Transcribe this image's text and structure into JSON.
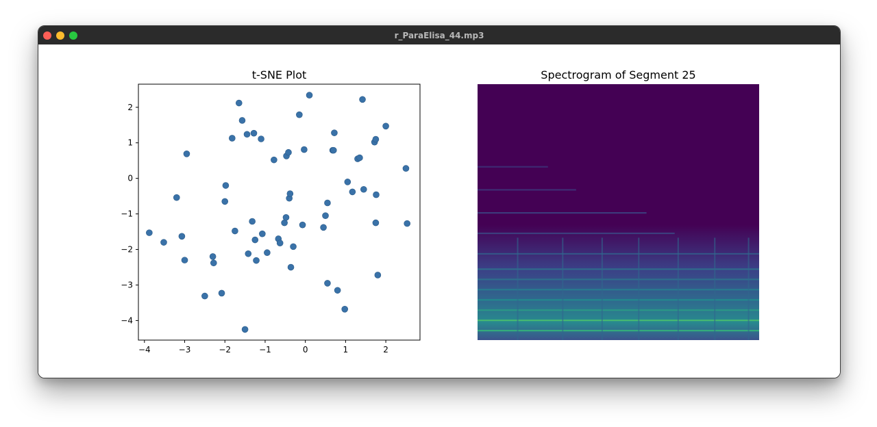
{
  "window": {
    "title": "r_ParaElisa_44.mp3"
  },
  "chart_data": [
    {
      "type": "scatter",
      "title": "t-SNE Plot",
      "xlabel": "",
      "ylabel": "",
      "xlim": [
        -4.15,
        2.85
      ],
      "ylim": [
        -4.55,
        2.65
      ],
      "xticks": [
        -4,
        -3,
        -2,
        -1,
        0,
        1,
        2
      ],
      "yticks": [
        -4,
        -3,
        -2,
        -1,
        0,
        1,
        2
      ],
      "xtick_labels": [
        "−4",
        "−3",
        "−2",
        "−1",
        "0",
        "1",
        "2"
      ],
      "ytick_labels": [
        "−4",
        "−3",
        "−2",
        "−1",
        "0",
        "1",
        "2"
      ],
      "grid": false,
      "color": "#3a72a8",
      "points": [
        [
          -3.88,
          -1.53
        ],
        [
          -3.52,
          -1.8
        ],
        [
          -3.2,
          -0.54
        ],
        [
          -3.07,
          -1.63
        ],
        [
          -3.0,
          -2.3
        ],
        [
          -2.95,
          0.69
        ],
        [
          -2.5,
          -3.31
        ],
        [
          -2.3,
          -2.2
        ],
        [
          -2.28,
          -2.38
        ],
        [
          -2.08,
          -3.23
        ],
        [
          -2.0,
          -0.65
        ],
        [
          -1.98,
          -0.2
        ],
        [
          -1.82,
          1.13
        ],
        [
          -1.75,
          -1.48
        ],
        [
          -1.65,
          2.12
        ],
        [
          -1.57,
          1.63
        ],
        [
          -1.5,
          -4.25
        ],
        [
          -1.45,
          1.24
        ],
        [
          -1.42,
          -2.12
        ],
        [
          -1.32,
          -1.21
        ],
        [
          -1.28,
          1.27
        ],
        [
          -1.25,
          -1.73
        ],
        [
          -1.22,
          -2.31
        ],
        [
          -1.1,
          1.11
        ],
        [
          -1.07,
          -1.56
        ],
        [
          -0.95,
          -2.09
        ],
        [
          -0.78,
          0.52
        ],
        [
          -0.67,
          -1.7
        ],
        [
          -0.63,
          -1.82
        ],
        [
          -0.52,
          -1.25
        ],
        [
          -0.48,
          -1.1
        ],
        [
          -0.47,
          0.63
        ],
        [
          -0.42,
          0.73
        ],
        [
          -0.4,
          -0.56
        ],
        [
          -0.38,
          -0.43
        ],
        [
          -0.36,
          -2.5
        ],
        [
          -0.3,
          -1.92
        ],
        [
          -0.15,
          1.79
        ],
        [
          -0.07,
          -1.31
        ],
        [
          -0.03,
          0.81
        ],
        [
          0.1,
          2.34
        ],
        [
          0.45,
          -1.38
        ],
        [
          0.5,
          -1.05
        ],
        [
          0.55,
          -0.69
        ],
        [
          0.55,
          -2.95
        ],
        [
          0.68,
          0.79
        ],
        [
          0.7,
          0.79
        ],
        [
          0.72,
          1.28
        ],
        [
          0.8,
          -3.15
        ],
        [
          0.98,
          -3.68
        ],
        [
          1.05,
          -0.1
        ],
        [
          1.17,
          -0.38
        ],
        [
          1.3,
          0.55
        ],
        [
          1.35,
          0.58
        ],
        [
          1.42,
          2.22
        ],
        [
          1.45,
          -0.31
        ],
        [
          1.72,
          1.02
        ],
        [
          1.75,
          1.1
        ],
        [
          1.75,
          -1.25
        ],
        [
          1.76,
          -0.46
        ],
        [
          1.8,
          -2.72
        ],
        [
          2.0,
          1.47
        ],
        [
          2.5,
          0.28
        ],
        [
          2.53,
          -1.27
        ]
      ]
    },
    {
      "type": "heatmap",
      "title": "Spectrogram of Segment 25",
      "xlabel": "",
      "ylabel": "",
      "colormap": "viridis",
      "background_color": "#440154",
      "axes": "hidden"
    }
  ]
}
